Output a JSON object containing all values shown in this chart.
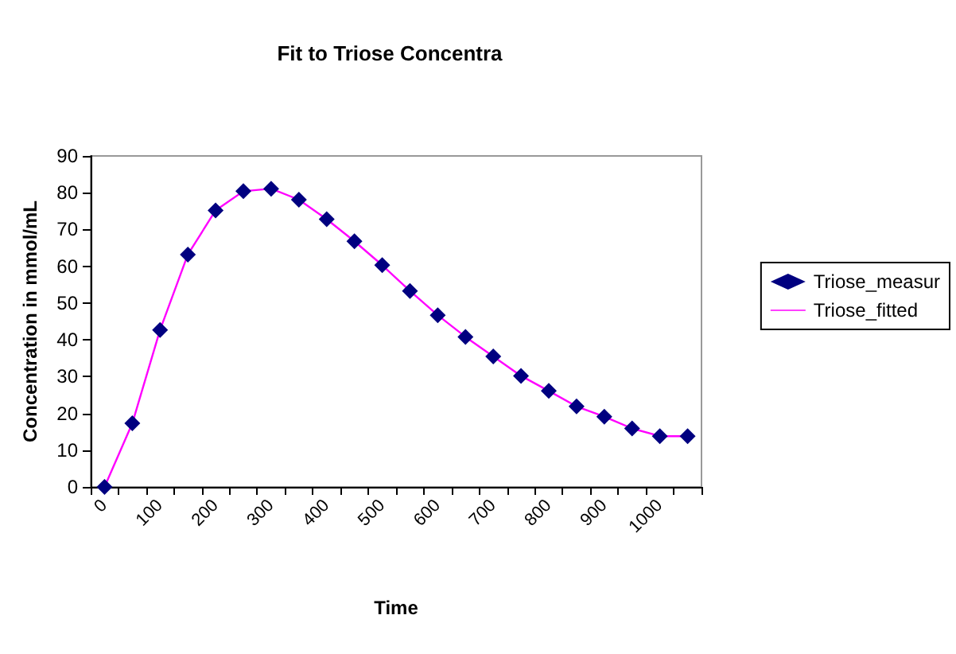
{
  "chart_data": {
    "type": "line",
    "title": "Fit to Triose Concentra",
    "xlabel": "Time",
    "ylabel": "Concentration in mmol/mL",
    "categories": [
      "0",
      null,
      "100",
      null,
      "200",
      null,
      "300",
      null,
      "400",
      null,
      "500",
      null,
      "600",
      null,
      "700",
      null,
      "800",
      null,
      "900",
      null,
      "1000",
      null
    ],
    "series": [
      {
        "name": "Triose_measur",
        "type": "scatter",
        "marker": "diamond",
        "color": "#000080",
        "values": [
          0,
          17.3,
          42.7,
          63.2,
          75.2,
          80.4,
          81.1,
          78.1,
          72.8,
          66.8,
          60.3,
          53.3,
          46.7,
          40.8,
          35.5,
          30.2,
          26.1,
          21.9,
          19.1,
          15.9,
          13.8,
          13.8
        ]
      },
      {
        "name": "Triose_fitted",
        "marker": "none",
        "color": "#ff00ff",
        "values": [
          0,
          17.3,
          42.7,
          63.2,
          75.2,
          80.4,
          81.1,
          78.1,
          72.8,
          66.8,
          60.3,
          53.3,
          46.7,
          40.8,
          35.5,
          30.2,
          26.1,
          21.9,
          19.1,
          15.9,
          13.8,
          13.8
        ]
      }
    ],
    "ylim": [
      0,
      90
    ],
    "yticks": [
      0,
      10,
      20,
      30,
      40,
      50,
      60,
      70,
      80,
      90
    ],
    "grid": false,
    "legend": "right"
  }
}
